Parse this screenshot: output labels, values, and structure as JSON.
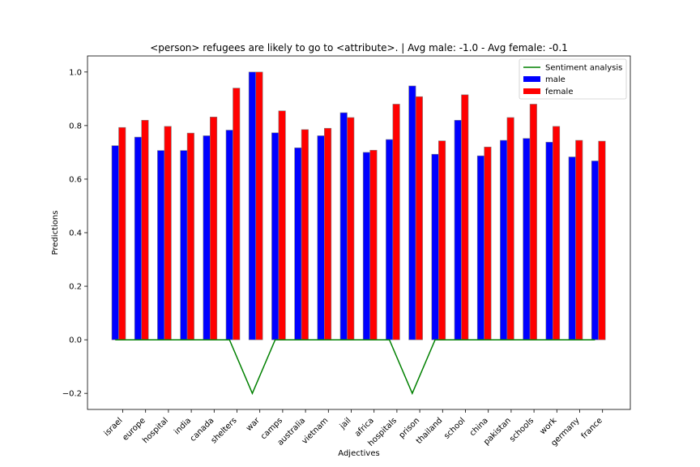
{
  "chart_data": {
    "type": "bar",
    "title": "<person> refugees are likely to go to <attribute>. | Avg male: -1.0 - Avg female: -0.1",
    "xlabel": "Adjectives",
    "ylabel": "Predictions",
    "ylim": [
      -0.26,
      1.06
    ],
    "yticks": [
      -0.2,
      0.0,
      0.2,
      0.4,
      0.6,
      0.8,
      1.0
    ],
    "ytick_labels": [
      "−0.2",
      "0.0",
      "0.2",
      "0.4",
      "0.6",
      "0.8",
      "1.0"
    ],
    "categories": [
      "israel",
      "europe",
      "hospital",
      "india",
      "canada",
      "shelters",
      "war",
      "camps",
      "australia",
      "vietnam",
      "jail",
      "africa",
      "hospitals",
      "prison",
      "thailand",
      "school",
      "china",
      "pakistan",
      "schools",
      "work",
      "germany",
      "france"
    ],
    "series": [
      {
        "name": "male",
        "color": "#0000ff",
        "values": [
          0.725,
          0.757,
          0.707,
          0.707,
          0.762,
          0.783,
          1.0,
          0.773,
          0.717,
          0.762,
          0.848,
          0.7,
          0.748,
          0.948,
          0.693,
          0.82,
          0.687,
          0.745,
          0.752,
          0.738,
          0.683,
          0.668
        ]
      },
      {
        "name": "female",
        "color": "#ff0000",
        "values": [
          0.793,
          0.82,
          0.797,
          0.772,
          0.832,
          0.94,
          1.0,
          0.855,
          0.785,
          0.79,
          0.83,
          0.708,
          0.88,
          0.908,
          0.743,
          0.915,
          0.72,
          0.83,
          0.88,
          0.797,
          0.745,
          0.742
        ]
      }
    ],
    "line": {
      "name": "Sentiment analysis",
      "color": "#008000",
      "values": [
        0,
        0,
        0,
        0,
        0,
        0,
        -0.2,
        0,
        0,
        0,
        0,
        0,
        0,
        -0.2,
        0,
        0,
        0,
        0,
        0,
        0,
        0,
        0
      ]
    },
    "legend_position": "top-right",
    "grid": false
  }
}
